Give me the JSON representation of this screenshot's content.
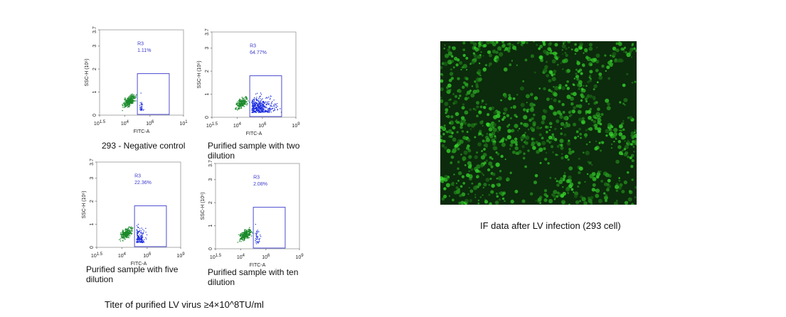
{
  "plots": [
    {
      "caption": "293 - Negative control",
      "gate": "R3",
      "percent": "1.11%",
      "y_label": "SSC-H (10⁶)",
      "x_label": "FITC-A",
      "y_ticks": [
        "0",
        "1",
        "2",
        "3",
        "3.7"
      ],
      "x_ticks": [
        {
          "base": "10",
          "exp": "1.5"
        },
        {
          "base": "10",
          "exp": "4"
        },
        {
          "base": "10",
          "exp": "6"
        },
        {
          "base": "10",
          "exp": "1"
        }
      ]
    },
    {
      "caption": "Purified sample with two dilution",
      "gate": "R3",
      "percent": "64.77%",
      "y_label": "SSC-H (10⁶)",
      "x_label": "FITC-A",
      "y_ticks": [
        "0",
        "1",
        "2",
        "3",
        "3.7"
      ],
      "x_ticks": [
        {
          "base": "10",
          "exp": "1.5"
        },
        {
          "base": "10",
          "exp": "4"
        },
        {
          "base": "10",
          "exp": "6"
        },
        {
          "base": "10",
          "exp": "9"
        }
      ]
    },
    {
      "caption": "Purified sample with five dilution",
      "gate": "R3",
      "percent": "22.36%",
      "y_label": "SSC-H (10⁶)",
      "x_label": "FITC-A",
      "y_ticks": [
        "0",
        "1",
        "2",
        "3",
        "3.7"
      ],
      "x_ticks": [
        {
          "base": "10",
          "exp": "1.5"
        },
        {
          "base": "10",
          "exp": "4"
        },
        {
          "base": "10",
          "exp": "6"
        },
        {
          "base": "10",
          "exp": "9"
        }
      ]
    },
    {
      "caption": "Purified sample with ten dilution",
      "gate": "R3",
      "percent": "2.08%",
      "y_label": "SSC-H (10⁶)",
      "x_label": "FITC-A",
      "y_ticks": [
        "0",
        "1",
        "2",
        "3",
        "3.7"
      ],
      "x_ticks": [
        {
          "base": "10",
          "exp": "1.5"
        },
        {
          "base": "10",
          "exp": "4"
        },
        {
          "base": "10",
          "exp": "6"
        },
        {
          "base": "10",
          "exp": "9"
        }
      ]
    }
  ],
  "titer": "Titer of purified LV virus ≥4×10^8TU/ml",
  "if_caption": "IF data after LV infection (293 cell)"
}
